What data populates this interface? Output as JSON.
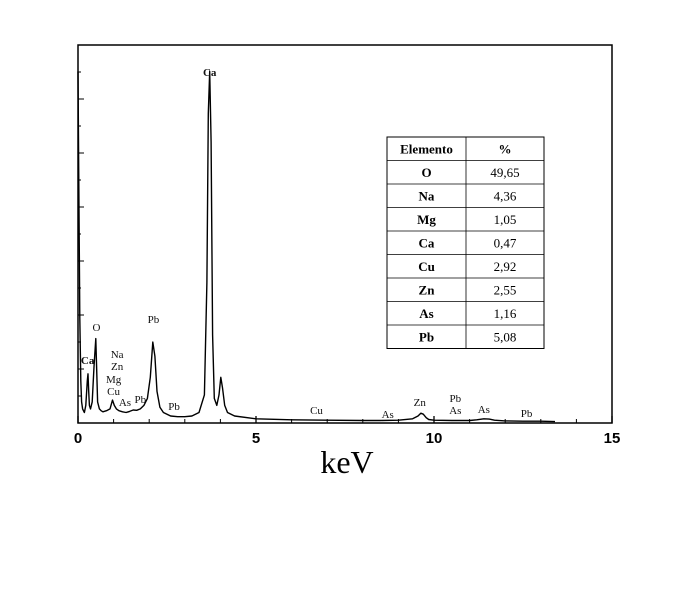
{
  "chart_data": {
    "type": "line",
    "title": "",
    "xlabel": "keV",
    "ylabel": "",
    "xlim": [
      0,
      15
    ],
    "xticks": [
      0,
      5,
      10,
      15
    ],
    "grid": false,
    "series": [
      {
        "x": [
          0,
          0.02,
          0.05,
          0.08,
          0.1,
          0.13,
          0.18,
          0.22,
          0.26,
          0.28,
          0.3,
          0.32,
          0.35,
          0.4,
          0.45,
          0.5,
          0.52,
          0.55,
          0.6,
          0.65,
          0.7,
          0.8,
          0.9,
          0.97,
          1.02,
          1.08,
          1.15,
          1.25,
          1.35,
          1.45,
          1.55,
          1.65,
          1.75,
          1.85,
          1.95,
          2.03,
          2.1,
          2.16,
          2.22,
          2.3,
          2.4,
          2.5,
          2.6,
          2.8,
          3.0,
          3.2,
          3.4,
          3.55,
          3.62,
          3.66,
          3.7,
          3.74,
          3.78,
          3.83,
          3.9,
          3.96,
          4.01,
          4.06,
          4.12,
          4.2,
          4.4,
          5.0,
          6.0,
          7.0,
          8.0,
          8.5,
          9.0,
          9.4,
          9.55,
          9.63,
          9.7,
          9.78,
          9.85,
          10.0,
          10.5,
          11.0,
          11.2,
          11.4,
          11.55,
          11.7,
          12.0,
          12.5,
          13.0,
          13.4
        ],
        "values": [
          1.0,
          0.72,
          0.3,
          0.12,
          0.06,
          0.04,
          0.03,
          0.05,
          0.12,
          0.14,
          0.09,
          0.05,
          0.04,
          0.06,
          0.16,
          0.24,
          0.17,
          0.06,
          0.04,
          0.035,
          0.032,
          0.035,
          0.04,
          0.065,
          0.05,
          0.04,
          0.035,
          0.032,
          0.03,
          0.033,
          0.037,
          0.036,
          0.04,
          0.05,
          0.07,
          0.13,
          0.23,
          0.19,
          0.09,
          0.045,
          0.03,
          0.025,
          0.02,
          0.018,
          0.018,
          0.02,
          0.03,
          0.08,
          0.4,
          0.88,
          1.0,
          0.8,
          0.25,
          0.07,
          0.05,
          0.08,
          0.13,
          0.1,
          0.05,
          0.03,
          0.02,
          0.012,
          0.009,
          0.008,
          0.007,
          0.007,
          0.008,
          0.012,
          0.02,
          0.028,
          0.025,
          0.015,
          0.01,
          0.008,
          0.007,
          0.007,
          0.009,
          0.012,
          0.011,
          0.008,
          0.006,
          0.005,
          0.005,
          0.004
        ]
      }
    ],
    "annotations": [
      {
        "text": "O",
        "x": 0.52
      },
      {
        "text": "Ca",
        "x": 0.27
      },
      {
        "text": "Na",
        "x": 1.1
      },
      {
        "text": "Zn",
        "x": 1.1
      },
      {
        "text": "Mg",
        "x": 1.0
      },
      {
        "text": "Cu",
        "x": 1.0
      },
      {
        "text": "As",
        "x": 1.32
      },
      {
        "text": "Pb",
        "x": 1.75
      },
      {
        "text": "Pb",
        "x": 2.12
      },
      {
        "text": "Ca",
        "x": 3.7
      },
      {
        "text": "Pb",
        "x": 2.7
      },
      {
        "text": "Cu",
        "x": 6.7
      },
      {
        "text": "As",
        "x": 8.7
      },
      {
        "text": "Zn",
        "x": 9.6
      },
      {
        "text": "Pb",
        "x": 10.6
      },
      {
        "text": "As",
        "x": 10.6
      },
      {
        "text": "As",
        "x": 11.4
      },
      {
        "text": "Pb",
        "x": 12.6
      }
    ],
    "table": {
      "headers": [
        "Elemento",
        "%"
      ],
      "rows": [
        [
          "O",
          "49,65"
        ],
        [
          "Na",
          "4,36"
        ],
        [
          "Mg",
          "1,05"
        ],
        [
          "Ca",
          "0,47"
        ],
        [
          "Cu",
          "2,92"
        ],
        [
          "Zn",
          "2,55"
        ],
        [
          "As",
          "1,16"
        ],
        [
          "Pb",
          "5,08"
        ]
      ]
    }
  }
}
